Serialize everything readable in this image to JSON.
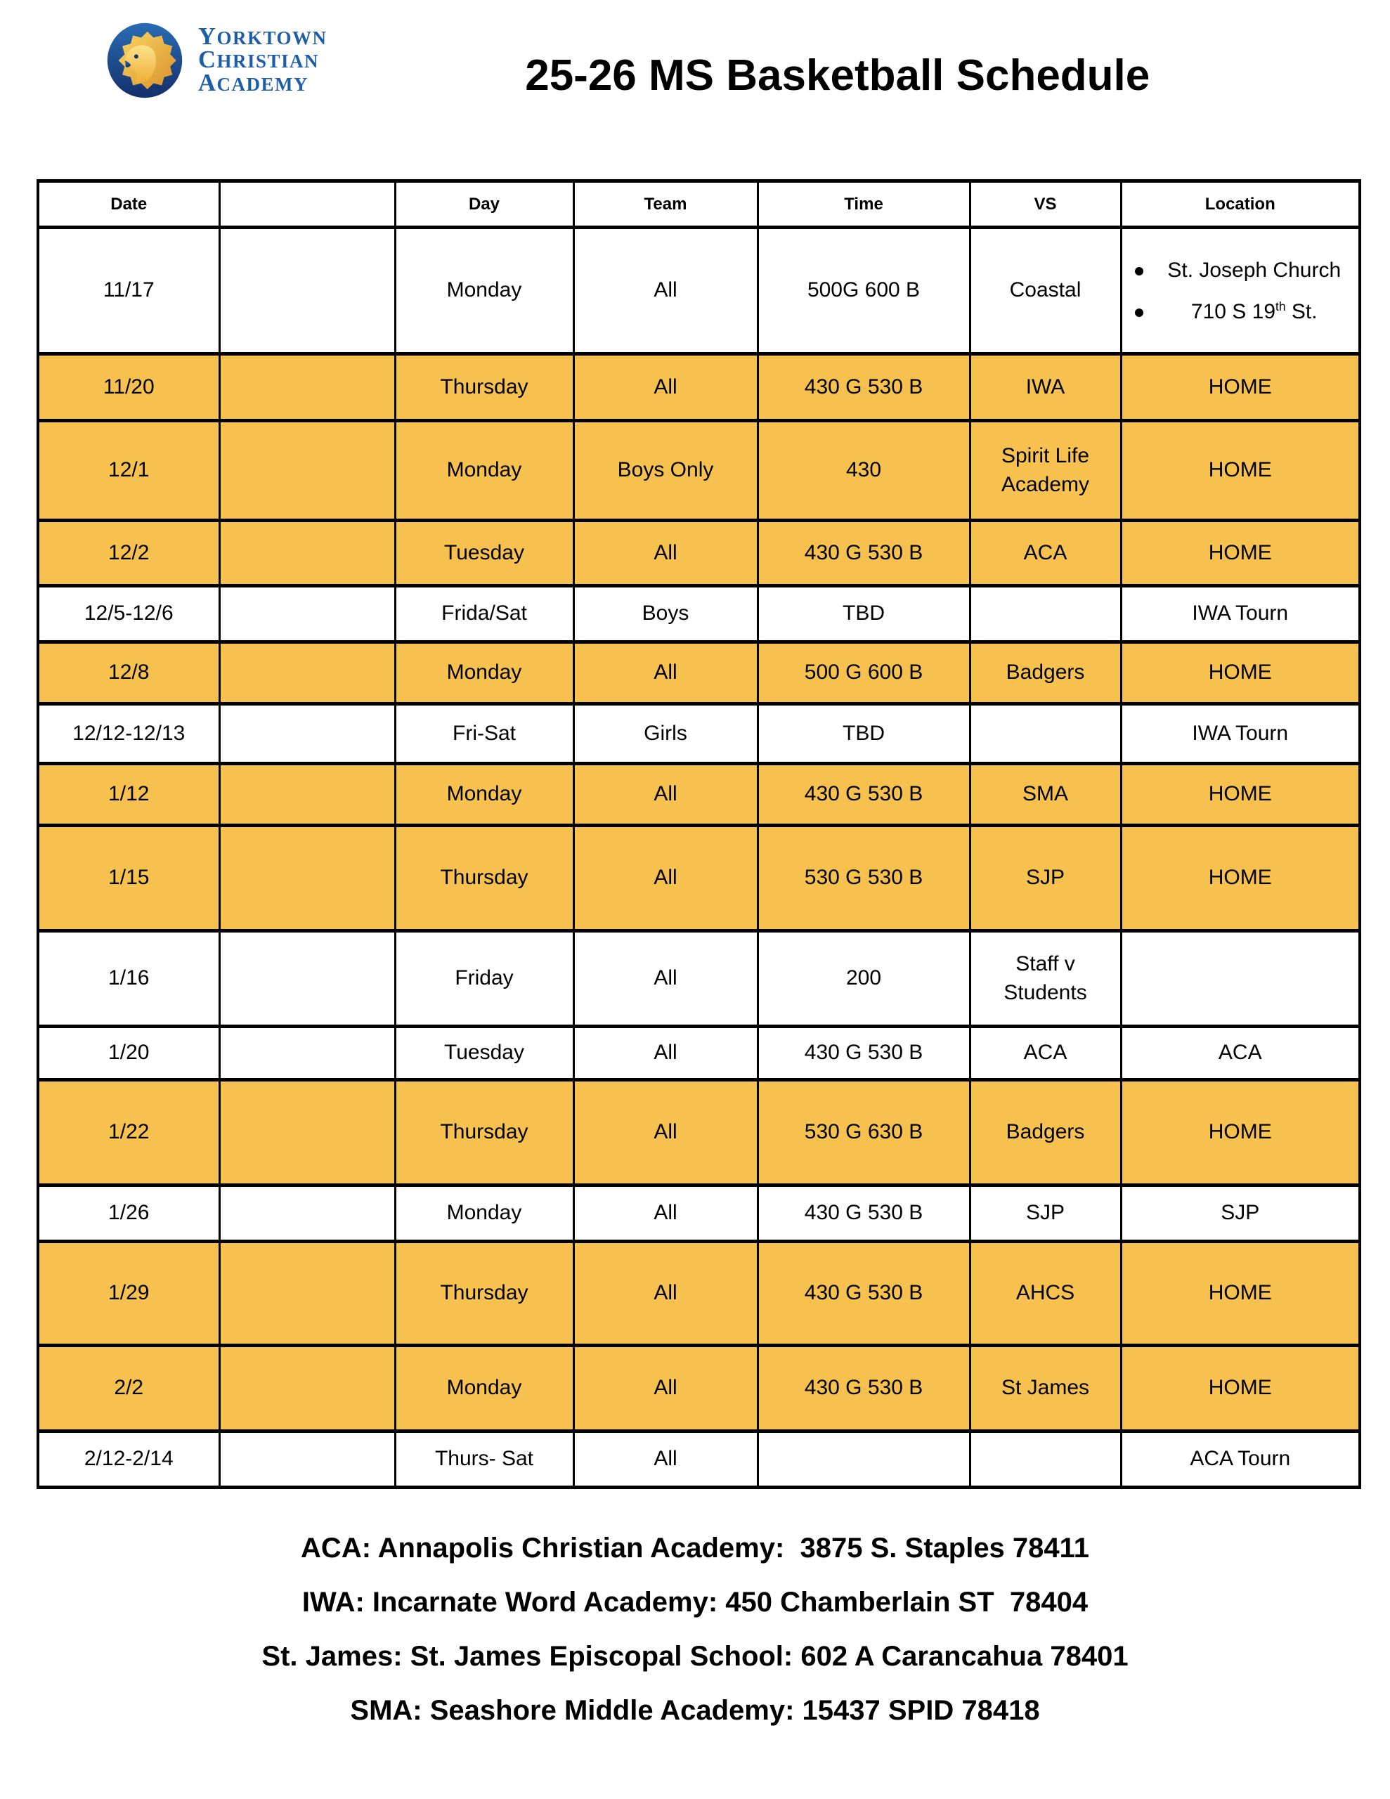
{
  "page": {
    "title": "25-26 MS Basketball Schedule"
  },
  "logo": {
    "icon": "lion-crest",
    "lines": [
      "Yorktown",
      "Christian",
      "Academy"
    ],
    "text_color": "#1E5EA9",
    "circle_color_top": "#2A6CB5",
    "circle_color_bottom": "#132F6B",
    "lion_gold": "#F2B23A"
  },
  "colors": {
    "highlight_row": "#F6C14F",
    "border": "#000000",
    "text": "#000000",
    "background": "#FFFFFF"
  },
  "table": {
    "headers": [
      "Date",
      "",
      "Day",
      "Team",
      "Time",
      "VS",
      "Location"
    ],
    "rows": [
      {
        "date": "11/17",
        "day": "Monday",
        "team": "All",
        "time": "500G 600 B",
        "vs": "Coastal",
        "location": {
          "bullets": [
            {
              "text": "St. Joseph Church"
            },
            {
              "text": "710 S 19",
              "sup": "th",
              "tail": " St."
            }
          ]
        },
        "highlight": false
      },
      {
        "date": "11/20",
        "day": "Thursday",
        "team": "All",
        "time": "430 G 530 B",
        "vs": "IWA",
        "location": "HOME",
        "highlight": true
      },
      {
        "date": "12/1",
        "day": "Monday",
        "team": "Boys Only",
        "time": "430",
        "vs": "Spirit Life Academy",
        "location": "HOME",
        "highlight": true
      },
      {
        "date": "12/2",
        "day": "Tuesday",
        "team": "All",
        "time": "430 G 530 B",
        "vs": "ACA",
        "location": "HOME",
        "highlight": true
      },
      {
        "date": "12/5-12/6",
        "day": "Frida/Sat",
        "team": "Boys",
        "time": "TBD",
        "vs": "",
        "location": "IWA Tourn",
        "highlight": false
      },
      {
        "date": "12/8",
        "day": "Monday",
        "team": "All",
        "time": "500 G 600 B",
        "vs": "Badgers",
        "location": "HOME",
        "highlight": true
      },
      {
        "date": "12/12-12/13",
        "day": "Fri-Sat",
        "team": "Girls",
        "time": "TBD",
        "vs": "",
        "location": "IWA Tourn",
        "highlight": false
      },
      {
        "date": "1/12",
        "day": "Monday",
        "team": "All",
        "time": "430 G 530 B",
        "vs": "SMA",
        "location": "HOME",
        "highlight": true
      },
      {
        "date": "1/15",
        "day": "Thursday",
        "team": "All",
        "time": "530 G 530 B",
        "vs": "SJP",
        "location": "HOME",
        "highlight": true
      },
      {
        "date": "1/16",
        "day": "Friday",
        "team": "All",
        "time": "200",
        "vs": "Staff v Students",
        "location": "",
        "highlight": false
      },
      {
        "date": "1/20",
        "day": "Tuesday",
        "team": "All",
        "time": "430 G 530 B",
        "vs": "ACA",
        "location": "ACA",
        "highlight": false
      },
      {
        "date": "1/22",
        "day": "Thursday",
        "team": "All",
        "time": "530 G 630 B",
        "vs": "Badgers",
        "location": "HOME",
        "highlight": true
      },
      {
        "date": "1/26",
        "day": "Monday",
        "team": "All",
        "time": "430 G 530 B",
        "vs": "SJP",
        "location": "SJP",
        "highlight": false
      },
      {
        "date": "1/29",
        "day": "Thursday",
        "team": "All",
        "time": "430 G 530 B",
        "vs": "AHCS",
        "location": "HOME",
        "highlight": true
      },
      {
        "date": "2/2",
        "day": "Monday",
        "team": "All",
        "time": "430 G 530 B",
        "vs": "St James",
        "location": "HOME",
        "highlight": true
      },
      {
        "date": "2/12-2/14",
        "day": "Thurs- Sat",
        "team": "All",
        "time": "",
        "vs": "",
        "location": "ACA Tourn",
        "highlight": false
      }
    ]
  },
  "footer": {
    "lines": [
      "ACA: Annapolis Christian Academy:  3875 S. Staples 78411",
      "IWA: Incarnate Word Academy: 450 Chamberlain ST  78404",
      "St. James: St. James Episcopal School: 602 A Carancahua 78401",
      "SMA: Seashore Middle Academy: 15437 SPID 78418"
    ]
  }
}
